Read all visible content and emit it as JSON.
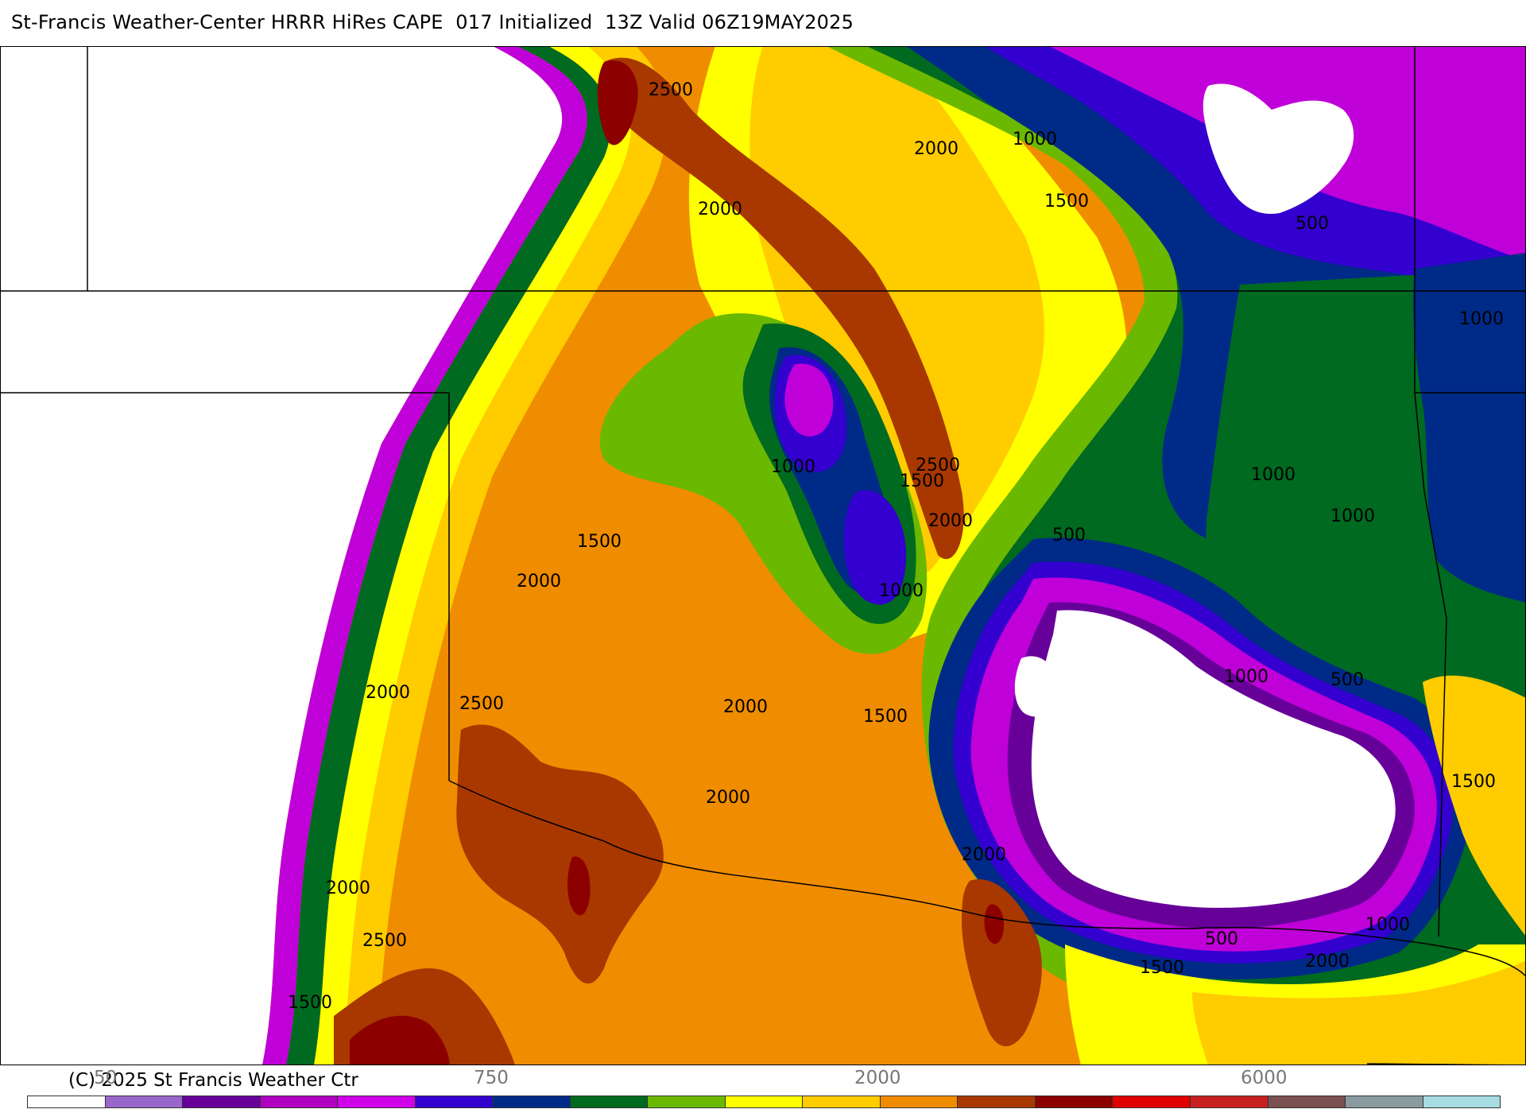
{
  "title": "St-Francis Weather-Center HRRR HiRes CAPE  017 Initialized  13Z Valid 06Z19MAY2025",
  "copyright": "(C) 2025 St Francis Weather Ctr",
  "contour_labels": [
    "2500",
    "2000",
    "2000",
    "1000",
    "1500",
    "500",
    "1000",
    "1000",
    "2500",
    "1500",
    "2000",
    "1500",
    "2000",
    "1000",
    "1000",
    "1000",
    "500",
    "1000",
    "500",
    "1500",
    "2000",
    "2500",
    "2000",
    "2000",
    "1500",
    "2000",
    "2500",
    "1500",
    "2000",
    "1500",
    "500",
    "2000",
    "1000"
  ],
  "scale": {
    "tick_labels": [
      "50",
      "750",
      "2000",
      "6000"
    ],
    "colors": [
      "#ffffff",
      "#9966cc",
      "#660099",
      "#b000c0",
      "#d000e8",
      "#3300d0",
      "#002a88",
      "#006a20",
      "#6bb800",
      "#ffff00",
      "#ffcc00",
      "#f08c00",
      "#a83800",
      "#8c0000",
      "#e00000",
      "#c82020",
      "#7a5050",
      "#8a9aa0",
      "#a8dce4"
    ]
  },
  "palette": {
    "white": "#ffffff",
    "lavender": "#9966cc",
    "purple": "#660099",
    "magenta": "#c000d8",
    "violet": "#3300d0",
    "navy": "#002a88",
    "dkgreen": "#006a20",
    "green": "#6bb800",
    "yellow": "#ffff00",
    "gold": "#ffcc00",
    "orange": "#f08c00",
    "brown": "#a83800",
    "maroon": "#8c0000"
  }
}
